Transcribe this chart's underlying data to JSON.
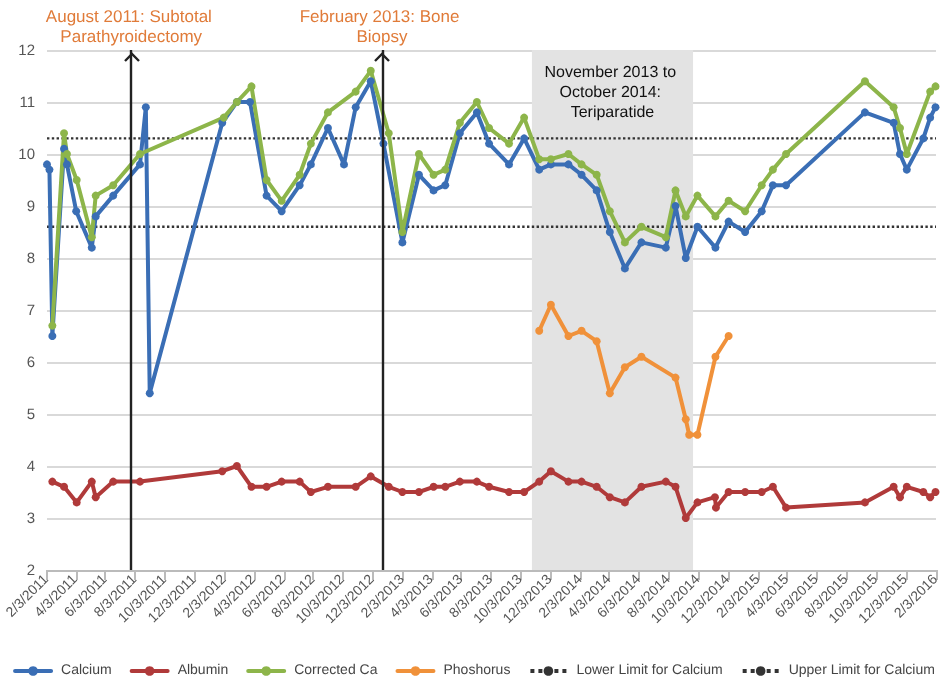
{
  "chart_data": {
    "type": "line",
    "xlim": [
      "2011-02-03",
      "2016-02-03"
    ],
    "xticks": [
      {
        "value": "2011-02-03",
        "label": "2/3/2011"
      },
      {
        "value": "2011-04-03",
        "label": "4/3/2011"
      },
      {
        "value": "2011-06-03",
        "label": "6/3/2011"
      },
      {
        "value": "2011-08-03",
        "label": "8/3/2011"
      },
      {
        "value": "2011-10-03",
        "label": "10/3/2011"
      },
      {
        "value": "2011-12-03",
        "label": "12/3/2011"
      },
      {
        "value": "2012-02-03",
        "label": "2/3/2012"
      },
      {
        "value": "2012-04-03",
        "label": "4/3/2012"
      },
      {
        "value": "2012-06-03",
        "label": "6/3/2012"
      },
      {
        "value": "2012-08-03",
        "label": "8/3/2012"
      },
      {
        "value": "2012-10-03",
        "label": "10/3/2012"
      },
      {
        "value": "2012-12-03",
        "label": "12/3/2012"
      },
      {
        "value": "2013-02-03",
        "label": "2/3/2013"
      },
      {
        "value": "2013-04-03",
        "label": "4/3/2013"
      },
      {
        "value": "2013-06-03",
        "label": "6/3/2013"
      },
      {
        "value": "2013-08-03",
        "label": "8/3/2013"
      },
      {
        "value": "2013-10-03",
        "label": "10/3/2013"
      },
      {
        "value": "2013-12-03",
        "label": "12/3/2013"
      },
      {
        "value": "2014-02-03",
        "label": "2/3/2014"
      },
      {
        "value": "2014-04-03",
        "label": "4/3/2014"
      },
      {
        "value": "2014-06-03",
        "label": "6/3/2014"
      },
      {
        "value": "2014-08-03",
        "label": "8/3/2014"
      },
      {
        "value": "2014-10-03",
        "label": "10/3/2014"
      },
      {
        "value": "2014-12-03",
        "label": "12/3/2014"
      },
      {
        "value": "2015-02-03",
        "label": "2/3/2015"
      },
      {
        "value": "2015-04-03",
        "label": "4/3/2015"
      },
      {
        "value": "2015-06-03",
        "label": "6/3/2015"
      },
      {
        "value": "2015-08-03",
        "label": "8/3/2015"
      },
      {
        "value": "2015-10-03",
        "label": "10/3/2015"
      },
      {
        "value": "2015-12-03",
        "label": "12/3/2015"
      },
      {
        "value": "2016-02-03",
        "label": "2/3/2016"
      }
    ],
    "ylim": [
      2,
      12
    ],
    "yticks": [
      2,
      3,
      4,
      5,
      6,
      7,
      8,
      9,
      10,
      11,
      12
    ],
    "grid": "y",
    "legend": "bottom",
    "marker": "circle",
    "line_style": "solid",
    "series": [
      {
        "name": "Calcium",
        "color": "#3a6eb5",
        "x": [
          "2011-02-03",
          "2011-02-08",
          "2011-02-14",
          "2011-03-10",
          "2011-03-16",
          "2011-04-04",
          "2011-05-06",
          "2011-05-14",
          "2011-06-19",
          "2011-08-13",
          "2011-08-25",
          "2011-09-02",
          "2012-01-29",
          "2012-02-28",
          "2012-03-26",
          "2012-04-29",
          "2012-05-30",
          "2012-07-06",
          "2012-07-29",
          "2012-09-02",
          "2012-10-05",
          "2012-10-29",
          "2012-11-29",
          "2012-12-25",
          "2013-02-02",
          "2013-03-08",
          "2013-04-07",
          "2013-05-01",
          "2013-05-31",
          "2013-07-05",
          "2013-07-30",
          "2013-09-09",
          "2013-10-10",
          "2013-11-10",
          "2013-12-04",
          "2014-01-09",
          "2014-02-05",
          "2014-03-08",
          "2014-04-04",
          "2014-05-05",
          "2014-06-08",
          "2014-07-28",
          "2014-08-17",
          "2014-09-07",
          "2014-10-01",
          "2014-11-07",
          "2014-12-04",
          "2015-01-07",
          "2015-02-10",
          "2015-03-05",
          "2015-04-01",
          "2015-09-10",
          "2015-11-08",
          "2015-11-21",
          "2015-12-05",
          "2016-01-08",
          "2016-01-22",
          "2016-02-02"
        ],
        "values": [
          9.8,
          9.7,
          6.5,
          10.1,
          9.8,
          8.9,
          8.2,
          8.8,
          9.2,
          9.8,
          10.9,
          5.4,
          10.6,
          11.0,
          11.0,
          9.2,
          8.9,
          9.4,
          9.8,
          10.5,
          9.8,
          10.9,
          11.4,
          10.2,
          8.3,
          9.6,
          9.3,
          9.4,
          10.4,
          10.8,
          10.2,
          9.8,
          10.3,
          9.7,
          9.8,
          9.8,
          9.6,
          9.3,
          8.5,
          7.8,
          8.3,
          8.2,
          9.0,
          8.0,
          8.6,
          8.2,
          8.7,
          8.5,
          8.9,
          9.4,
          9.4,
          10.8,
          10.6,
          10.0,
          9.7,
          10.3,
          10.7,
          10.9
        ]
      },
      {
        "name": "Albumin",
        "color": "#b03a3a",
        "x": [
          "2011-02-14",
          "2011-03-10",
          "2011-04-05",
          "2011-05-06",
          "2011-05-14",
          "2011-06-19",
          "2011-08-13",
          "2012-01-29",
          "2012-02-28",
          "2012-03-29",
          "2012-04-29",
          "2012-05-30",
          "2012-07-06",
          "2012-07-29",
          "2012-09-02",
          "2012-10-29",
          "2012-11-29",
          "2013-01-05",
          "2013-02-02",
          "2013-03-08",
          "2013-04-07",
          "2013-05-01",
          "2013-05-31",
          "2013-07-05",
          "2013-07-30",
          "2013-09-09",
          "2013-10-10",
          "2013-11-10",
          "2013-12-04",
          "2014-01-09",
          "2014-02-05",
          "2014-03-08",
          "2014-04-04",
          "2014-05-05",
          "2014-06-08",
          "2014-07-28",
          "2014-08-17",
          "2014-09-07",
          "2014-10-01",
          "2014-11-06",
          "2014-11-08",
          "2014-12-04",
          "2015-01-07",
          "2015-02-10",
          "2015-03-05",
          "2015-04-01",
          "2015-09-10",
          "2015-11-08",
          "2015-11-21",
          "2015-12-05",
          "2016-01-08",
          "2016-01-22",
          "2016-02-02"
        ],
        "values": [
          3.7,
          3.6,
          3.3,
          3.7,
          3.4,
          3.7,
          3.7,
          3.9,
          4.0,
          3.6,
          3.6,
          3.7,
          3.7,
          3.5,
          3.6,
          3.6,
          3.8,
          3.6,
          3.5,
          3.5,
          3.6,
          3.6,
          3.7,
          3.7,
          3.6,
          3.5,
          3.5,
          3.7,
          3.9,
          3.7,
          3.7,
          3.6,
          3.4,
          3.3,
          3.6,
          3.7,
          3.6,
          3.0,
          3.3,
          3.4,
          3.2,
          3.5,
          3.5,
          3.5,
          3.6,
          3.2,
          3.3,
          3.6,
          3.4,
          3.6,
          3.5,
          3.4,
          3.5
        ]
      },
      {
        "name": "Corrected Ca",
        "color": "#8db54a",
        "x": [
          "2011-02-14",
          "2011-03-10",
          "2011-03-16",
          "2011-04-05",
          "2011-05-06",
          "2011-05-14",
          "2011-06-19",
          "2011-08-13",
          "2012-02-01",
          "2012-02-28",
          "2012-03-29",
          "2012-04-29",
          "2012-05-30",
          "2012-07-06",
          "2012-07-29",
          "2012-09-02",
          "2012-10-29",
          "2012-11-29",
          "2013-01-05",
          "2013-02-02",
          "2013-03-08",
          "2013-04-07",
          "2013-05-01",
          "2013-05-31",
          "2013-07-05",
          "2013-07-30",
          "2013-09-09",
          "2013-10-10",
          "2013-11-10",
          "2013-12-04",
          "2014-01-09",
          "2014-02-05",
          "2014-03-08",
          "2014-04-04",
          "2014-05-05",
          "2014-06-08",
          "2014-07-28",
          "2014-08-17",
          "2014-09-07",
          "2014-10-01",
          "2014-11-07",
          "2014-12-04",
          "2015-01-07",
          "2015-02-10",
          "2015-03-05",
          "2015-04-01",
          "2015-09-10",
          "2015-11-08",
          "2015-11-21",
          "2015-12-05",
          "2016-01-22",
          "2016-02-02"
        ],
        "values": [
          6.7,
          10.4,
          10.0,
          9.5,
          8.4,
          9.2,
          9.4,
          10.0,
          10.7,
          11.0,
          11.3,
          9.5,
          9.1,
          9.6,
          10.2,
          10.8,
          11.2,
          11.6,
          10.4,
          8.5,
          10.0,
          9.6,
          9.7,
          10.6,
          11.0,
          10.5,
          10.2,
          10.7,
          9.9,
          9.9,
          10.0,
          9.8,
          9.6,
          8.9,
          8.3,
          8.6,
          8.4,
          9.3,
          8.8,
          9.2,
          8.8,
          9.1,
          8.9,
          9.4,
          9.7,
          10.0,
          11.4,
          10.9,
          10.5,
          10.0,
          11.2,
          11.3
        ]
      },
      {
        "name": "Phoshorus",
        "color": "#f0913a",
        "x": [
          "2013-11-10",
          "2013-12-04",
          "2014-01-09",
          "2014-02-05",
          "2014-03-08",
          "2014-04-04",
          "2014-05-05",
          "2014-06-08",
          "2014-08-17",
          "2014-09-07",
          "2014-09-14",
          "2014-10-01",
          "2014-11-07",
          "2014-12-04"
        ],
        "values": [
          6.6,
          7.1,
          6.5,
          6.6,
          6.4,
          5.4,
          5.9,
          6.1,
          5.7,
          4.9,
          4.6,
          4.6,
          6.1,
          6.5
        ]
      }
    ],
    "ref_lines": [
      {
        "axis": "y",
        "value": 8.6,
        "label": "Lower Limit for Calcium",
        "color": "#333333",
        "line_style": "dotted"
      },
      {
        "axis": "y",
        "value": 10.3,
        "label": "Upper Limit for Calcium",
        "color": "#333333",
        "line_style": "dotted"
      },
      {
        "axis": "x",
        "value": "2011-07-26",
        "label": "August 2011: Subtotal Parathyroidectomy",
        "color": "#222222",
        "line_style": "solid"
      },
      {
        "axis": "x",
        "value": "2012-12-22",
        "label": "February 2013: Bone Biopsy",
        "color": "#222222",
        "line_style": "solid"
      }
    ],
    "bands": [
      {
        "axis": "x",
        "from": "2013-10-26",
        "to": "2014-09-22",
        "label": "November 2013 to October 2014: Teriparatide",
        "color": "#e3e3e3"
      }
    ]
  }
}
